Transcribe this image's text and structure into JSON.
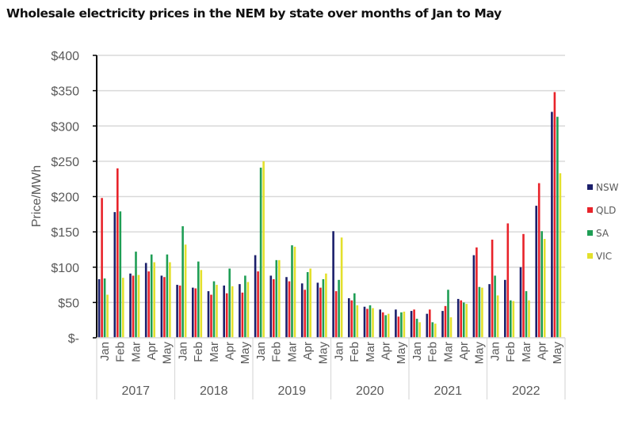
{
  "chart_data": {
    "type": "bar",
    "title": "Wholesale electricity prices in the NEM by state over months of Jan to May",
    "xlabel": "",
    "ylabel": "Price/MWh",
    "ylim": [
      0,
      400
    ],
    "yticks": [
      0,
      50,
      100,
      150,
      200,
      250,
      300,
      350,
      400
    ],
    "ytick_labels": [
      "$-",
      "$50",
      "$100",
      "$150",
      "$200",
      "$250",
      "$300",
      "$350",
      "$400"
    ],
    "grid": true,
    "legend_position": "right",
    "years": [
      "2017",
      "2018",
      "2019",
      "2020",
      "2021",
      "2022"
    ],
    "months": [
      "Jan",
      "Feb",
      "Mar",
      "Apr",
      "May"
    ],
    "categories": [
      "2017 Jan",
      "2017 Feb",
      "2017 Mar",
      "2017 Apr",
      "2017 May",
      "2018 Jan",
      "2018 Feb",
      "2018 Mar",
      "2018 Apr",
      "2018 May",
      "2019 Jan",
      "2019 Feb",
      "2019 Mar",
      "2019 Apr",
      "2019 May",
      "2020 Jan",
      "2020 Feb",
      "2020 Mar",
      "2020 Apr",
      "2020 May",
      "2021 Jan",
      "2021 Feb",
      "2021 Mar",
      "2021 Apr",
      "2021 May",
      "2022 Jan",
      "2022 Feb",
      "2022 Mar",
      "2022 Apr",
      "2022 May"
    ],
    "series": [
      {
        "name": "NSW",
        "color": "#1b1f6b",
        "values": [
          83,
          178,
          91,
          106,
          88,
          75,
          71,
          66,
          74,
          76,
          117,
          88,
          86,
          77,
          78,
          151,
          56,
          44,
          40,
          40,
          38,
          34,
          38,
          55,
          117,
          76,
          82,
          100,
          187,
          320
        ]
      },
      {
        "name": "QLD",
        "color": "#e8232a",
        "values": [
          198,
          240,
          88,
          94,
          86,
          74,
          70,
          61,
          63,
          64,
          94,
          83,
          80,
          68,
          71,
          66,
          53,
          41,
          36,
          30,
          40,
          40,
          45,
          53,
          128,
          139,
          162,
          147,
          219,
          348
        ]
      },
      {
        "name": "SA",
        "color": "#1f9e55",
        "values": [
          84,
          179,
          122,
          118,
          118,
          158,
          108,
          80,
          98,
          88,
          241,
          110,
          131,
          93,
          83,
          82,
          63,
          46,
          32,
          36,
          27,
          22,
          68,
          50,
          72,
          88,
          53,
          66,
          151,
          313
        ]
      },
      {
        "name": "VIC",
        "color": "#e3e02c",
        "values": [
          61,
          85,
          89,
          107,
          107,
          132,
          96,
          75,
          73,
          79,
          250,
          110,
          129,
          98,
          91,
          142,
          46,
          42,
          34,
          37,
          22,
          20,
          29,
          48,
          71,
          60,
          52,
          53,
          140,
          233
        ]
      }
    ]
  }
}
